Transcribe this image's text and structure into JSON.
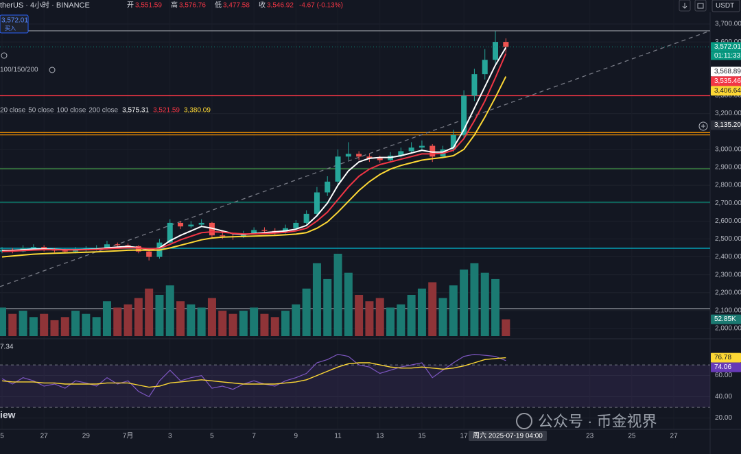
{
  "title": "therUS · 4小时 · BINANCE",
  "ohlc_header": [
    {
      "label": "开",
      "value": "3,551.59"
    },
    {
      "label": "高",
      "value": "3,576.76"
    },
    {
      "label": "低",
      "value": "3,477.58"
    },
    {
      "label": "收",
      "value": "3,546.92"
    }
  ],
  "change": "-4.67 (-0.13%)",
  "currency": "USDT",
  "left_panel": {
    "price": "3,572.01",
    "action": "买入",
    "ma_label": "100/150/200"
  },
  "ma_legend": {
    "extra": "200 close",
    "values": [
      "3,575.31",
      "3,521.59",
      "3,380.09"
    ]
  },
  "crosshair_label": "周六 2025-07-19  04:00",
  "brand": "iew",
  "watermark": "公众号 · 币金视界",
  "chart_data": [
    {
      "type": "candlestick",
      "x": [
        "2025-06-25 00:00",
        "2025-06-25 12:00",
        "2025-06-26 00:00",
        "2025-06-26 12:00",
        "2025-06-27 00:00",
        "2025-06-27 12:00",
        "2025-06-28 00:00",
        "2025-06-28 12:00",
        "2025-06-29 00:00",
        "2025-06-29 12:00",
        "2025-06-30 00:00",
        "2025-06-30 12:00",
        "2025-07-01 00:00",
        "2025-07-01 12:00",
        "2025-07-02 00:00",
        "2025-07-02 12:00",
        "2025-07-03 00:00",
        "2025-07-03 12:00",
        "2025-07-04 00:00",
        "2025-07-04 12:00",
        "2025-07-05 00:00",
        "2025-07-05 12:00",
        "2025-07-06 00:00",
        "2025-07-06 12:00",
        "2025-07-07 00:00",
        "2025-07-07 12:00",
        "2025-07-08 00:00",
        "2025-07-08 12:00",
        "2025-07-09 00:00",
        "2025-07-09 12:00",
        "2025-07-10 00:00",
        "2025-07-10 12:00",
        "2025-07-11 00:00",
        "2025-07-11 12:00",
        "2025-07-12 00:00",
        "2025-07-12 12:00",
        "2025-07-13 00:00",
        "2025-07-13 12:00",
        "2025-07-14 00:00",
        "2025-07-14 12:00",
        "2025-07-15 00:00",
        "2025-07-15 12:00",
        "2025-07-16 00:00",
        "2025-07-16 12:00",
        "2025-07-17 00:00",
        "2025-07-17 12:00",
        "2025-07-18 00:00",
        "2025-07-18 12:00",
        "2025-07-19 00:00"
      ],
      "open": [
        2430,
        2440,
        2430,
        2450,
        2455,
        2440,
        2435,
        2430,
        2440,
        2445,
        2450,
        2470,
        2465,
        2460,
        2430,
        2400,
        2480,
        2590,
        2570,
        2580,
        2590,
        2520,
        2515,
        2510,
        2530,
        2550,
        2545,
        2540,
        2560,
        2590,
        2640,
        2760,
        2820,
        2960,
        2975,
        2960,
        2950,
        2940,
        2965,
        2990,
        3010,
        3020,
        2960,
        3000,
        3080,
        3300,
        3420,
        3500,
        3600
      ],
      "high": [
        2455,
        2450,
        2465,
        2470,
        2465,
        2450,
        2445,
        2455,
        2460,
        2465,
        2490,
        2480,
        2475,
        2465,
        2440,
        2500,
        2610,
        2600,
        2600,
        2610,
        2595,
        2535,
        2530,
        2545,
        2565,
        2565,
        2560,
        2580,
        2605,
        2660,
        2790,
        2850,
        3000,
        3040,
        2990,
        2975,
        2965,
        2985,
        3010,
        3040,
        3050,
        3030,
        3020,
        3110,
        3330,
        3450,
        3560,
        3660,
        3620
      ],
      "low": [
        2420,
        2420,
        2425,
        2440,
        2430,
        2425,
        2420,
        2420,
        2430,
        2435,
        2440,
        2450,
        2450,
        2420,
        2380,
        2390,
        2470,
        2555,
        2560,
        2565,
        2505,
        2500,
        2495,
        2505,
        2525,
        2530,
        2525,
        2530,
        2550,
        2580,
        2625,
        2740,
        2800,
        2940,
        2940,
        2930,
        2925,
        2930,
        2955,
        2980,
        2990,
        2930,
        2950,
        2985,
        3060,
        3270,
        3390,
        3480,
        3540
      ],
      "close": [
        2440,
        2430,
        2450,
        2455,
        2440,
        2435,
        2430,
        2440,
        2445,
        2450,
        2470,
        2465,
        2460,
        2430,
        2400,
        2480,
        2590,
        2570,
        2580,
        2590,
        2520,
        2515,
        2510,
        2530,
        2550,
        2545,
        2540,
        2560,
        2590,
        2640,
        2760,
        2820,
        2960,
        2975,
        2960,
        2950,
        2940,
        2965,
        2990,
        3010,
        3020,
        2960,
        3000,
        3080,
        3300,
        3420,
        3500,
        3600,
        3572.01
      ],
      "up_color": "#26a69a",
      "down_color": "#ef5350",
      "volume": {
        "values": [
          90,
          70,
          80,
          60,
          70,
          50,
          60,
          80,
          70,
          60,
          110,
          90,
          100,
          120,
          150,
          130,
          160,
          110,
          100,
          90,
          120,
          80,
          70,
          80,
          90,
          70,
          60,
          80,
          100,
          150,
          230,
          180,
          260,
          200,
          130,
          110,
          120,
          90,
          100,
          130,
          150,
          170,
          120,
          160,
          210,
          230,
          200,
          180,
          52.85
        ],
        "label": "52.85K",
        "up_color": "#1b7a72",
        "down_color": "#8f3438"
      },
      "series": [
        {
          "name": "20 close",
          "color": "#ffffff",
          "values": [
            2435,
            2436,
            2440,
            2443,
            2444,
            2442,
            2440,
            2440,
            2441,
            2443,
            2450,
            2455,
            2458,
            2452,
            2440,
            2450,
            2490,
            2520,
            2545,
            2570,
            2560,
            2545,
            2530,
            2525,
            2530,
            2535,
            2540,
            2545,
            2555,
            2575,
            2630,
            2700,
            2800,
            2880,
            2930,
            2950,
            2955,
            2955,
            2965,
            2980,
            2995,
            2985,
            2985,
            3010,
            3110,
            3230,
            3350,
            3470,
            3568.89
          ]
        },
        {
          "name": "50 close",
          "color": "#f23645",
          "values": [
            2430,
            2432,
            2435,
            2438,
            2440,
            2440,
            2439,
            2439,
            2440,
            2441,
            2445,
            2448,
            2451,
            2450,
            2445,
            2447,
            2470,
            2495,
            2515,
            2535,
            2540,
            2538,
            2532,
            2528,
            2528,
            2530,
            2533,
            2537,
            2545,
            2560,
            2600,
            2650,
            2720,
            2790,
            2850,
            2890,
            2915,
            2930,
            2945,
            2960,
            2975,
            2975,
            2978,
            2995,
            3060,
            3160,
            3270,
            3400,
            3535.46
          ]
        },
        {
          "name": "100 close",
          "color": "#fdd835",
          "values": [
            2400,
            2405,
            2410,
            2415,
            2418,
            2420,
            2422,
            2424,
            2426,
            2428,
            2431,
            2434,
            2437,
            2438,
            2437,
            2438,
            2450,
            2465,
            2480,
            2495,
            2505,
            2510,
            2512,
            2514,
            2516,
            2518,
            2520,
            2523,
            2527,
            2535,
            2560,
            2595,
            2650,
            2710,
            2770,
            2820,
            2860,
            2890,
            2910,
            2925,
            2940,
            2948,
            2955,
            2965,
            3000,
            3080,
            3180,
            3290,
            3406.64
          ]
        }
      ],
      "xlim": [
        "2025-06-24 21:40",
        "2025-07-28 17:30"
      ],
      "ylim": [
        1958,
        3834
      ],
      "yticks": [
        {
          "value": 3700,
          "label": "3,700.00"
        },
        {
          "value": 3600,
          "label": "3,600.00"
        },
        {
          "value": 3300,
          "label": "3,300.00"
        },
        {
          "value": 3200,
          "label": "3,200.00"
        },
        {
          "value": 3000,
          "label": "3,000.00"
        },
        {
          "value": 2900,
          "label": "2,900.00"
        },
        {
          "value": 2800,
          "label": "2,800.00"
        },
        {
          "value": 2700,
          "label": "2,700.00"
        },
        {
          "value": 2600,
          "label": "2,600.00"
        },
        {
          "value": 2500,
          "label": "2,500.00"
        },
        {
          "value": 2400,
          "label": "2,400.00"
        },
        {
          "value": 2300,
          "label": "2,300.00"
        },
        {
          "value": 2200,
          "label": "2,200.00"
        },
        {
          "value": 2100,
          "label": "2,100.00"
        },
        {
          "value": 2000,
          "label": "2,000.00"
        }
      ],
      "xticks": [
        {
          "value": "2025-06-25 00:00",
          "label": "5"
        },
        {
          "value": "2025-06-27 00:00",
          "label": "27"
        },
        {
          "value": "2025-06-29 00:00",
          "label": "29"
        },
        {
          "value": "2025-07-01 00:00",
          "label": "7月"
        },
        {
          "value": "2025-07-03 00:00",
          "label": "3"
        },
        {
          "value": "2025-07-05 00:00",
          "label": "5"
        },
        {
          "value": "2025-07-07 00:00",
          "label": "7"
        },
        {
          "value": "2025-07-09 00:00",
          "label": "9"
        },
        {
          "value": "2025-07-11 00:00",
          "label": "11"
        },
        {
          "value": "2025-07-13 00:00",
          "label": "13"
        },
        {
          "value": "2025-07-15 00:00",
          "label": "15"
        },
        {
          "value": "2025-07-17 00:00",
          "label": "17"
        },
        {
          "value": "2025-07-23 00:00",
          "label": "23"
        },
        {
          "value": "2025-07-25 00:00",
          "label": "25"
        },
        {
          "value": "2025-07-27 00:00",
          "label": "27"
        }
      ],
      "grid": true,
      "hlines": [
        {
          "value": 3662,
          "color": "#9598a1"
        },
        {
          "value": 3300,
          "color": "#f23645"
        },
        {
          "value": 3094,
          "color": "#ff9800"
        },
        {
          "value": 3081,
          "color": "#ff9800"
        },
        {
          "value": 2892,
          "color": "#4caf50"
        },
        {
          "value": 2705,
          "color": "#089981"
        },
        {
          "value": 2448,
          "color": "#00bcd4"
        },
        {
          "value": 2111,
          "color": "#9598a1"
        }
      ],
      "trendline": {
        "x": [
          "2025-06-24 21:40",
          "2025-07-28 17:30"
        ],
        "y": [
          2234,
          3662
        ],
        "color": "#787b86"
      },
      "price_labels": [
        {
          "text": "3,572.01",
          "value": 3572.01,
          "color": "#089981",
          "sub": "01:11:33",
          "dotted": true
        },
        {
          "text": "3,568.89",
          "value": 3568.89,
          "color": "#ffffff"
        },
        {
          "text": "3,535.46",
          "value": 3535.46,
          "color": "#f23645"
        },
        {
          "text": "3,406.64",
          "value": 3406.64,
          "color": "#fdd835"
        },
        {
          "text": "3,135.20",
          "value": 3135.2,
          "color": "#2a2e39"
        }
      ]
    },
    {
      "type": "line",
      "series": [
        {
          "color": "#7e57c2",
          "values": [
            57,
            52,
            58,
            55,
            50,
            52,
            48,
            55,
            53,
            50,
            58,
            52,
            55,
            45,
            40,
            55,
            65,
            55,
            58,
            60,
            48,
            50,
            47,
            52,
            55,
            52,
            50,
            55,
            58,
            62,
            72,
            75,
            80,
            78,
            70,
            68,
            62,
            65,
            68,
            70,
            72,
            58,
            65,
            72,
            78,
            80,
            79,
            78,
            74.06
          ],
          "label": "74.06"
        },
        {
          "color": "#fdd835",
          "values": [
            55,
            54,
            54,
            54,
            53,
            53,
            52,
            52,
            52,
            52,
            53,
            53,
            53,
            51,
            49,
            50,
            53,
            54,
            55,
            56,
            55,
            54,
            53,
            52,
            52,
            52,
            52,
            53,
            54,
            56,
            60,
            64,
            68,
            71,
            72,
            72,
            70,
            68,
            67,
            67,
            68,
            67,
            66,
            67,
            69,
            72,
            75,
            76,
            76.78
          ],
          "label": "76.78"
        }
      ],
      "side_label": "7.34",
      "band": [
        30,
        70
      ],
      "ylim": [
        10,
        92
      ],
      "yticks": [
        {
          "value": 60,
          "label": "60.00"
        },
        {
          "value": 40,
          "label": "40.00"
        },
        {
          "value": 20,
          "label": "20.00"
        }
      ]
    }
  ]
}
